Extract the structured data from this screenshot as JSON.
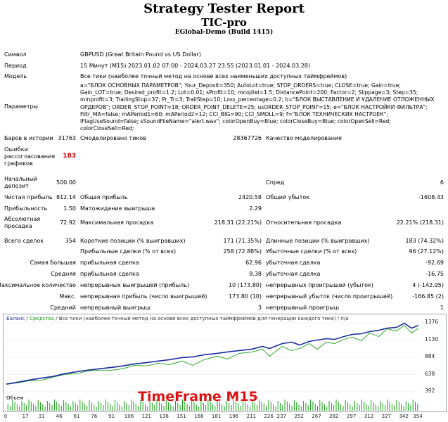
{
  "header": {
    "title": "Strategy Tester Report",
    "expert": "TIC-pro",
    "build": "EGlobal-Demo (Build 1415)"
  },
  "info": {
    "symbol_label": "Символ",
    "symbol_value": "GBPUSD (Great Britain Pound vs US Dollar)",
    "period_label": "Период",
    "period_value": "15 Минут (M15) 2023.01.02 07:00 - 2024.03.27 23:55 (2023.01.01 - 2024.03.28)",
    "model_label": "Модель",
    "model_value": "Все тики (наиболее точный метод на основе всех наименьших доступных таймфреймов)",
    "params_label": "Параметры",
    "params_value": "a=\"БЛОК ОСНОВНЫХ ПАРАМЕТРОВ\"; Your_Deposit=350; AutoLot=true; STOP_ORDERS=true; CLOSE=true; Gain=true; Gain_LOT=true; Desired_profit=1.2; Lot=0.01; sProfit=10; mnojitel=1.5; DistancePoint=200; Factor=2; Slippage=3; Step=35; minprofit=3; TrailingStop=37; Pr_Tr=3; TrallStep=10; Loss_percentage=0.2; b=\"БЛОК ВЫСТАВЛЕНИЕ И УДАЛЕНИЕ ОТЛОЖЕННЫХ ОРДЕРОВ\"; ORDER_STOP_POINT=18; ORDER_POINT_DELETE=25; usORDER_STOP_POINT=15; e=\"БЛОК НАСТРОЙКИ ФИЛЬТРА\"; Filtr_MA=false; mAPeriod1=60; mAPeriod2=12; CCI_BIG=90; CCI_SMOLL=9; f=\"БЛОК ТЕХНИЧЕСКИХ НАСТРОЕК\"; lFlagUseSound=false; sSoundFileName=\"alert.wav\"; colorOpenBuy=Blue; colorCloseBuy=Blue; colorOpenSell=Red; colorCloseSell=Red;"
  },
  "stats": {
    "bars_label": "Баров в истории",
    "bars_value": "31763",
    "ticks_label": "Смоделировано тиков",
    "ticks_value": "28367726",
    "quality_label": "Качество моделирования",
    "quality_value": "",
    "errors_label_1": "Ошибки",
    "errors_label_2": "рассогласования",
    "errors_label_3": "графиков",
    "errors_value": "183",
    "deposit_label_1": "Начальный",
    "deposit_label_2": "депозит",
    "deposit_value": "500.00",
    "spread_label": "Спред",
    "spread_value": "6",
    "net_label": "Чистая прибыль",
    "net_value": "812.14",
    "gross_profit_label": "Общая прибыль",
    "gross_profit_value": "2420.58",
    "gross_loss_label": "Общий убыток",
    "gross_loss_value": "-1608.43",
    "pf_label": "Прибыльность",
    "pf_value": "1.50",
    "expected_label": "Матожидание выигрыша",
    "expected_value": "2.29",
    "abs_dd_label_1": "Абсолютная",
    "abs_dd_label_2": "просадка",
    "abs_dd_value": "72.92",
    "max_dd_label": "Максимальная просадка",
    "max_dd_value": "218.31 (22.21%)",
    "rel_dd_label": "Относительная просадка",
    "rel_dd_value": "22.21% (218.31)",
    "trades_label": "Всего сделок",
    "trades_value": "354",
    "short_label": "Короткие позиции (% выигравших)",
    "short_value": "171 (71.35%)",
    "long_label": "Длинные позиции (% выигравших)",
    "long_value": "183 (74.32%)",
    "profit_trades_label": "Прибыльные сделки (% от всех)",
    "profit_trades_value": "258 (72.88%)",
    "loss_trades_label": "Убыточные сделки (% от всех)",
    "loss_trades_value": "96 (27.12%)",
    "largest_label": "Самая большая",
    "largest_profit_label": "прибыльная сделка",
    "largest_profit_value": "62.96",
    "largest_loss_label": "убыточная сделка",
    "largest_loss_value": "-92.69",
    "average_label": "Средняя",
    "average_profit_label": "прибыльная сделка",
    "average_profit_value": "9.38",
    "average_loss_label": "убыточная сделка",
    "average_loss_value": "-16.75",
    "max_label": "Максимальное количество",
    "max_cons_wins_label": "непрерывных выигрышей (прибыль)",
    "max_cons_wins_value": "10 (173.80)",
    "max_cons_losses_label": "непрерывных проигрышей (убыток)",
    "max_cons_losses_value": "4 (-142.95)",
    "maximal_label": "Макс.",
    "maximal_cons_profit_label": "непрерывная прибыль (число выигрышей)",
    "maximal_cons_profit_value": "173.80 (10)",
    "maximal_cons_loss_label": "непрерывный убыток (число проигрышей)",
    "maximal_cons_loss_value": "-166.85 (2)",
    "avg_cons_label": "Средний",
    "avg_cons_wins_label": "непрерывный выигрыш",
    "avg_cons_wins_value": "3",
    "avg_cons_losses_label": "непрерывный проигрыш",
    "avg_cons_losses_value": "1"
  },
  "chart_legend": {
    "balance": "Баланс",
    "separator": " / ",
    "equity": "Средства",
    "rest": " / Все тики (наиболее точный метод на основе всех доступных таймфреймов для генерации каждого тика) / п/а"
  },
  "volume_label": "Объем",
  "overlay_text": "TimeFrame M15",
  "colors": {
    "balance": "#1a2ea0",
    "equity": "#1aa01a",
    "volume": "#1aa01a",
    "overlay": "#e01010"
  },
  "chart_data": {
    "type": "line",
    "x_ticks": [
      "0",
      "17",
      "31",
      "46",
      "61",
      "76",
      "91",
      "106",
      "121",
      "136",
      "151",
      "166",
      "181",
      "196",
      "211",
      "226",
      "237",
      "252",
      "267",
      "282",
      "297",
      "312",
      "327",
      "342",
      "354"
    ],
    "y_ticks": [
      "1376",
      "1130",
      "884",
      "638",
      "392"
    ],
    "ylim": [
      392,
      1376
    ],
    "xlim": [
      0,
      354
    ],
    "series": [
      {
        "name": "Баланс",
        "x": [
          0,
          10,
          20,
          31,
          40,
          50,
          61,
          70,
          80,
          91,
          100,
          110,
          121,
          130,
          140,
          151,
          160,
          170,
          181,
          190,
          200,
          211,
          220,
          226,
          237,
          245,
          252,
          260,
          267,
          275,
          282,
          290,
          297,
          305,
          312,
          320,
          327,
          335,
          342,
          348,
          354
        ],
        "values": [
          500,
          530,
          560,
          590,
          610,
          650,
          680,
          700,
          720,
          740,
          760,
          790,
          810,
          830,
          850,
          880,
          890,
          920,
          940,
          960,
          980,
          1000,
          1040,
          1010,
          1080,
          1100,
          1060,
          1110,
          1130,
          1150,
          1140,
          1180,
          1210,
          1220,
          1250,
          1270,
          1300,
          1310,
          1370,
          1300,
          1340
        ]
      },
      {
        "name": "Средства",
        "x": [
          0,
          10,
          20,
          31,
          40,
          50,
          61,
          70,
          80,
          91,
          100,
          110,
          121,
          130,
          140,
          151,
          160,
          170,
          181,
          190,
          200,
          211,
          220,
          226,
          237,
          245,
          252,
          260,
          267,
          275,
          282,
          290,
          297,
          305,
          312,
          320,
          327,
          335,
          342,
          348,
          354
        ],
        "values": [
          500,
          520,
          550,
          560,
          600,
          640,
          650,
          690,
          700,
          700,
          720,
          770,
          760,
          800,
          780,
          830,
          770,
          850,
          900,
          860,
          940,
          960,
          1000,
          900,
          1040,
          980,
          1010,
          1080,
          1000,
          1100,
          1080,
          1140,
          1170,
          1120,
          1230,
          1180,
          1290,
          1260,
          1340,
          1230,
          1300
        ]
      }
    ]
  }
}
